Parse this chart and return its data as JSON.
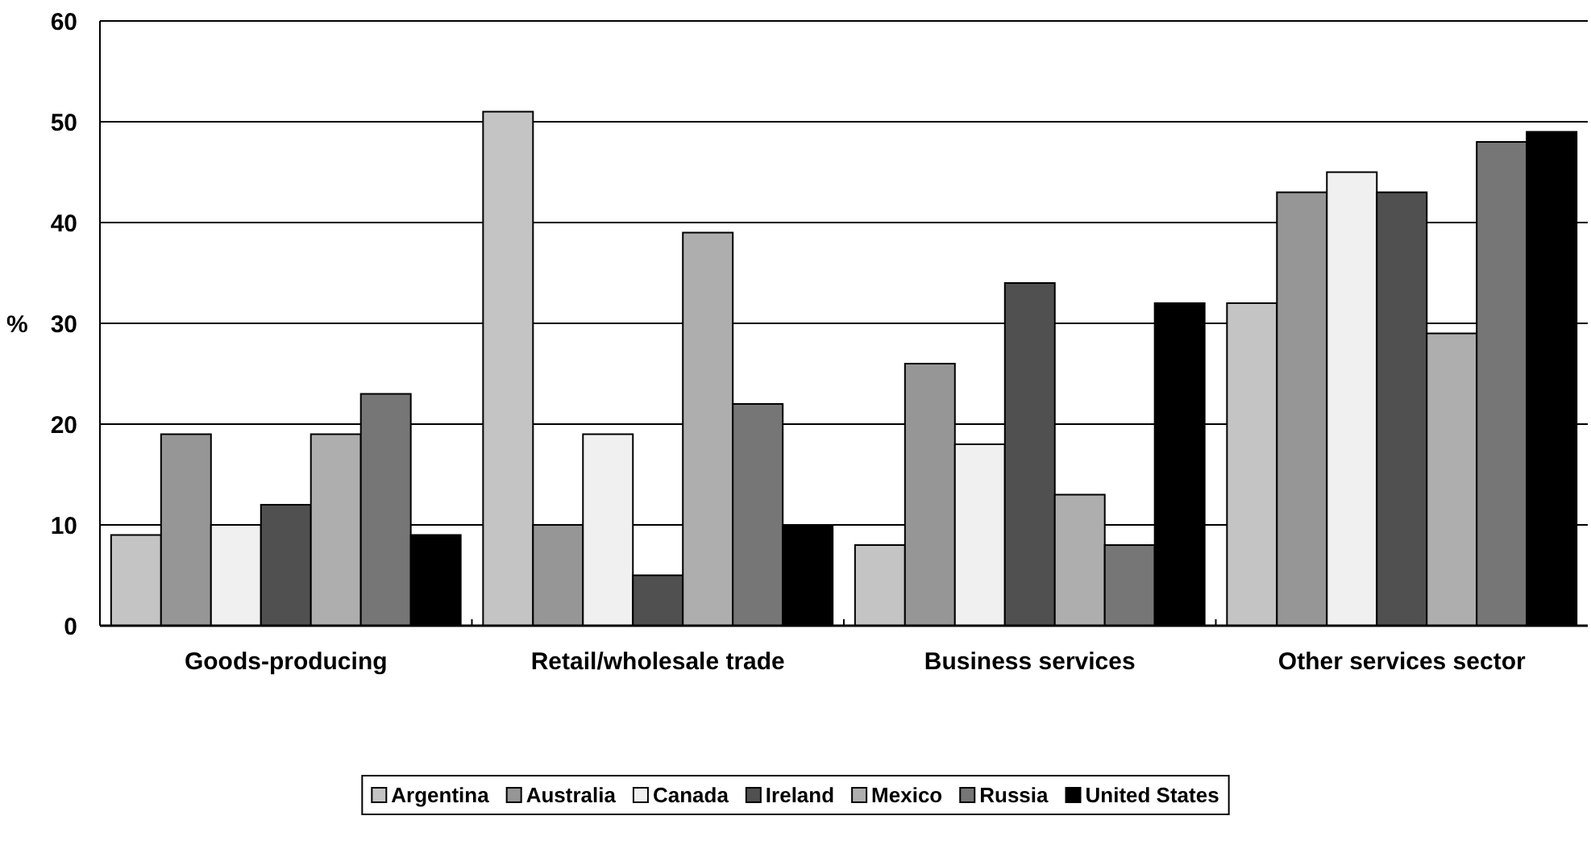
{
  "chart_data": {
    "type": "bar",
    "ylabel": "%",
    "categories": [
      "Goods-producing",
      "Retail/wholesale trade",
      "Business services",
      "Other services sector"
    ],
    "series": [
      {
        "name": "Argentina",
        "color": "#c4c4c4",
        "values": [
          9,
          51,
          8,
          32
        ]
      },
      {
        "name": "Australia",
        "color": "#969696",
        "values": [
          19,
          10,
          26,
          43
        ]
      },
      {
        "name": "Canada",
        "color": "#f0f0f0",
        "values": [
          10,
          19,
          18,
          45
        ]
      },
      {
        "name": "Ireland",
        "color": "#505050",
        "values": [
          12,
          5,
          34,
          43
        ]
      },
      {
        "name": "Mexico",
        "color": "#aeaeae",
        "values": [
          19,
          39,
          13,
          29
        ]
      },
      {
        "name": "Russia",
        "color": "#767676",
        "values": [
          23,
          22,
          8,
          48
        ]
      },
      {
        "name": "United States",
        "color": "#000000",
        "values": [
          9,
          10,
          32,
          49
        ]
      }
    ],
    "ylim": [
      0,
      60
    ],
    "yticks": [
      0,
      10,
      20,
      30,
      40,
      50,
      60
    ],
    "grid": "y",
    "legend": "bottom"
  }
}
